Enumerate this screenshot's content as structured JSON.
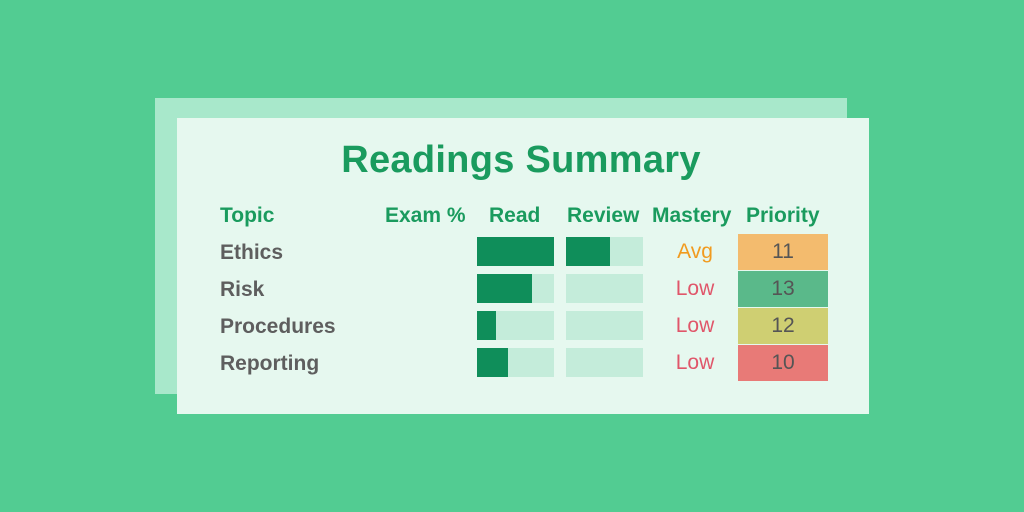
{
  "title": "Readings Summary",
  "headers": {
    "topic": "Topic",
    "exam": "Exam %",
    "read": "Read",
    "review": "Review",
    "mastery": "Mastery",
    "priority": "Priority"
  },
  "rows": [
    {
      "topic": "Ethics",
      "read": 1.0,
      "review": 0.57,
      "mastery": "Avg",
      "mastery_color": "#f19b1f",
      "priority": "11",
      "priority_color": "#f3bb6e"
    },
    {
      "topic": "Risk",
      "read": 0.71,
      "review": 0.0,
      "mastery": "Low",
      "mastery_color": "#e0566a",
      "priority": "13",
      "priority_color": "#5ab98a"
    },
    {
      "topic": "Procedures",
      "read": 0.25,
      "review": 0.0,
      "mastery": "Low",
      "mastery_color": "#e0566a",
      "priority": "12",
      "priority_color": "#cfcf72"
    },
    {
      "topic": "Reporting",
      "read": 0.4,
      "review": 0.0,
      "mastery": "Low",
      "mastery_color": "#e0566a",
      "priority": "10",
      "priority_color": "#e87a77"
    }
  ],
  "colors": {
    "background": "#52cc92",
    "card": "#e6f8ef",
    "accent": "#1a9b5e",
    "bar_fill": "#0f8e5a",
    "bar_track": "#c4ecda"
  }
}
